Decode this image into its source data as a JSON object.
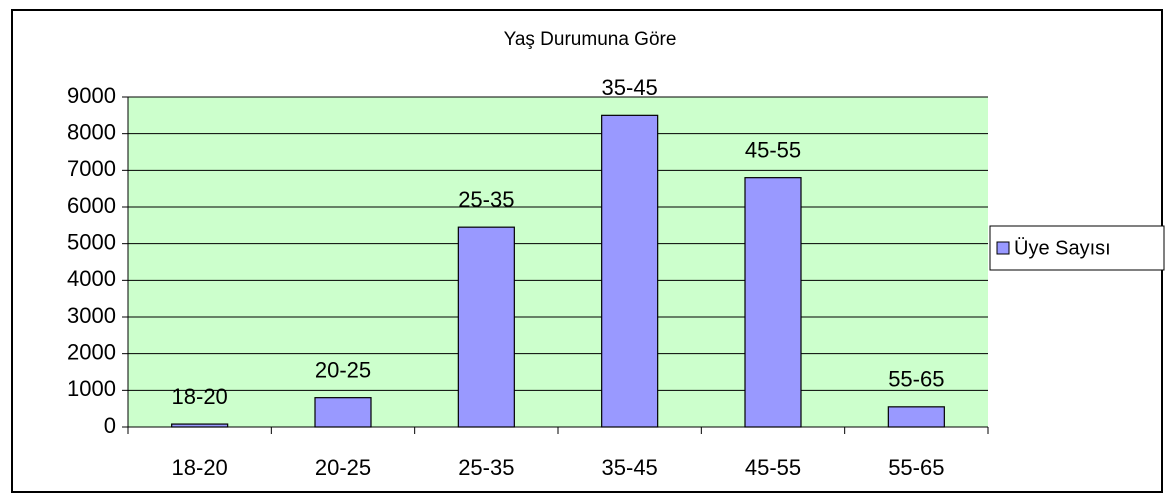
{
  "chart_data": {
    "type": "bar",
    "title": "Yaş Durumuna Göre",
    "categories": [
      "18-20",
      "20-25",
      "25-35",
      "35-45",
      "45-55",
      "55-65"
    ],
    "series": [
      {
        "name": "Üye Sayısı",
        "color": "#9999ff",
        "values": [
          80,
          800,
          5450,
          8500,
          6800,
          550
        ]
      }
    ],
    "ylim": [
      0,
      9000
    ],
    "yticks": [
      0,
      1000,
      2000,
      3000,
      4000,
      5000,
      6000,
      7000,
      8000,
      9000
    ],
    "grid": true,
    "legend": "right",
    "plot_background": "#ccffcc"
  }
}
